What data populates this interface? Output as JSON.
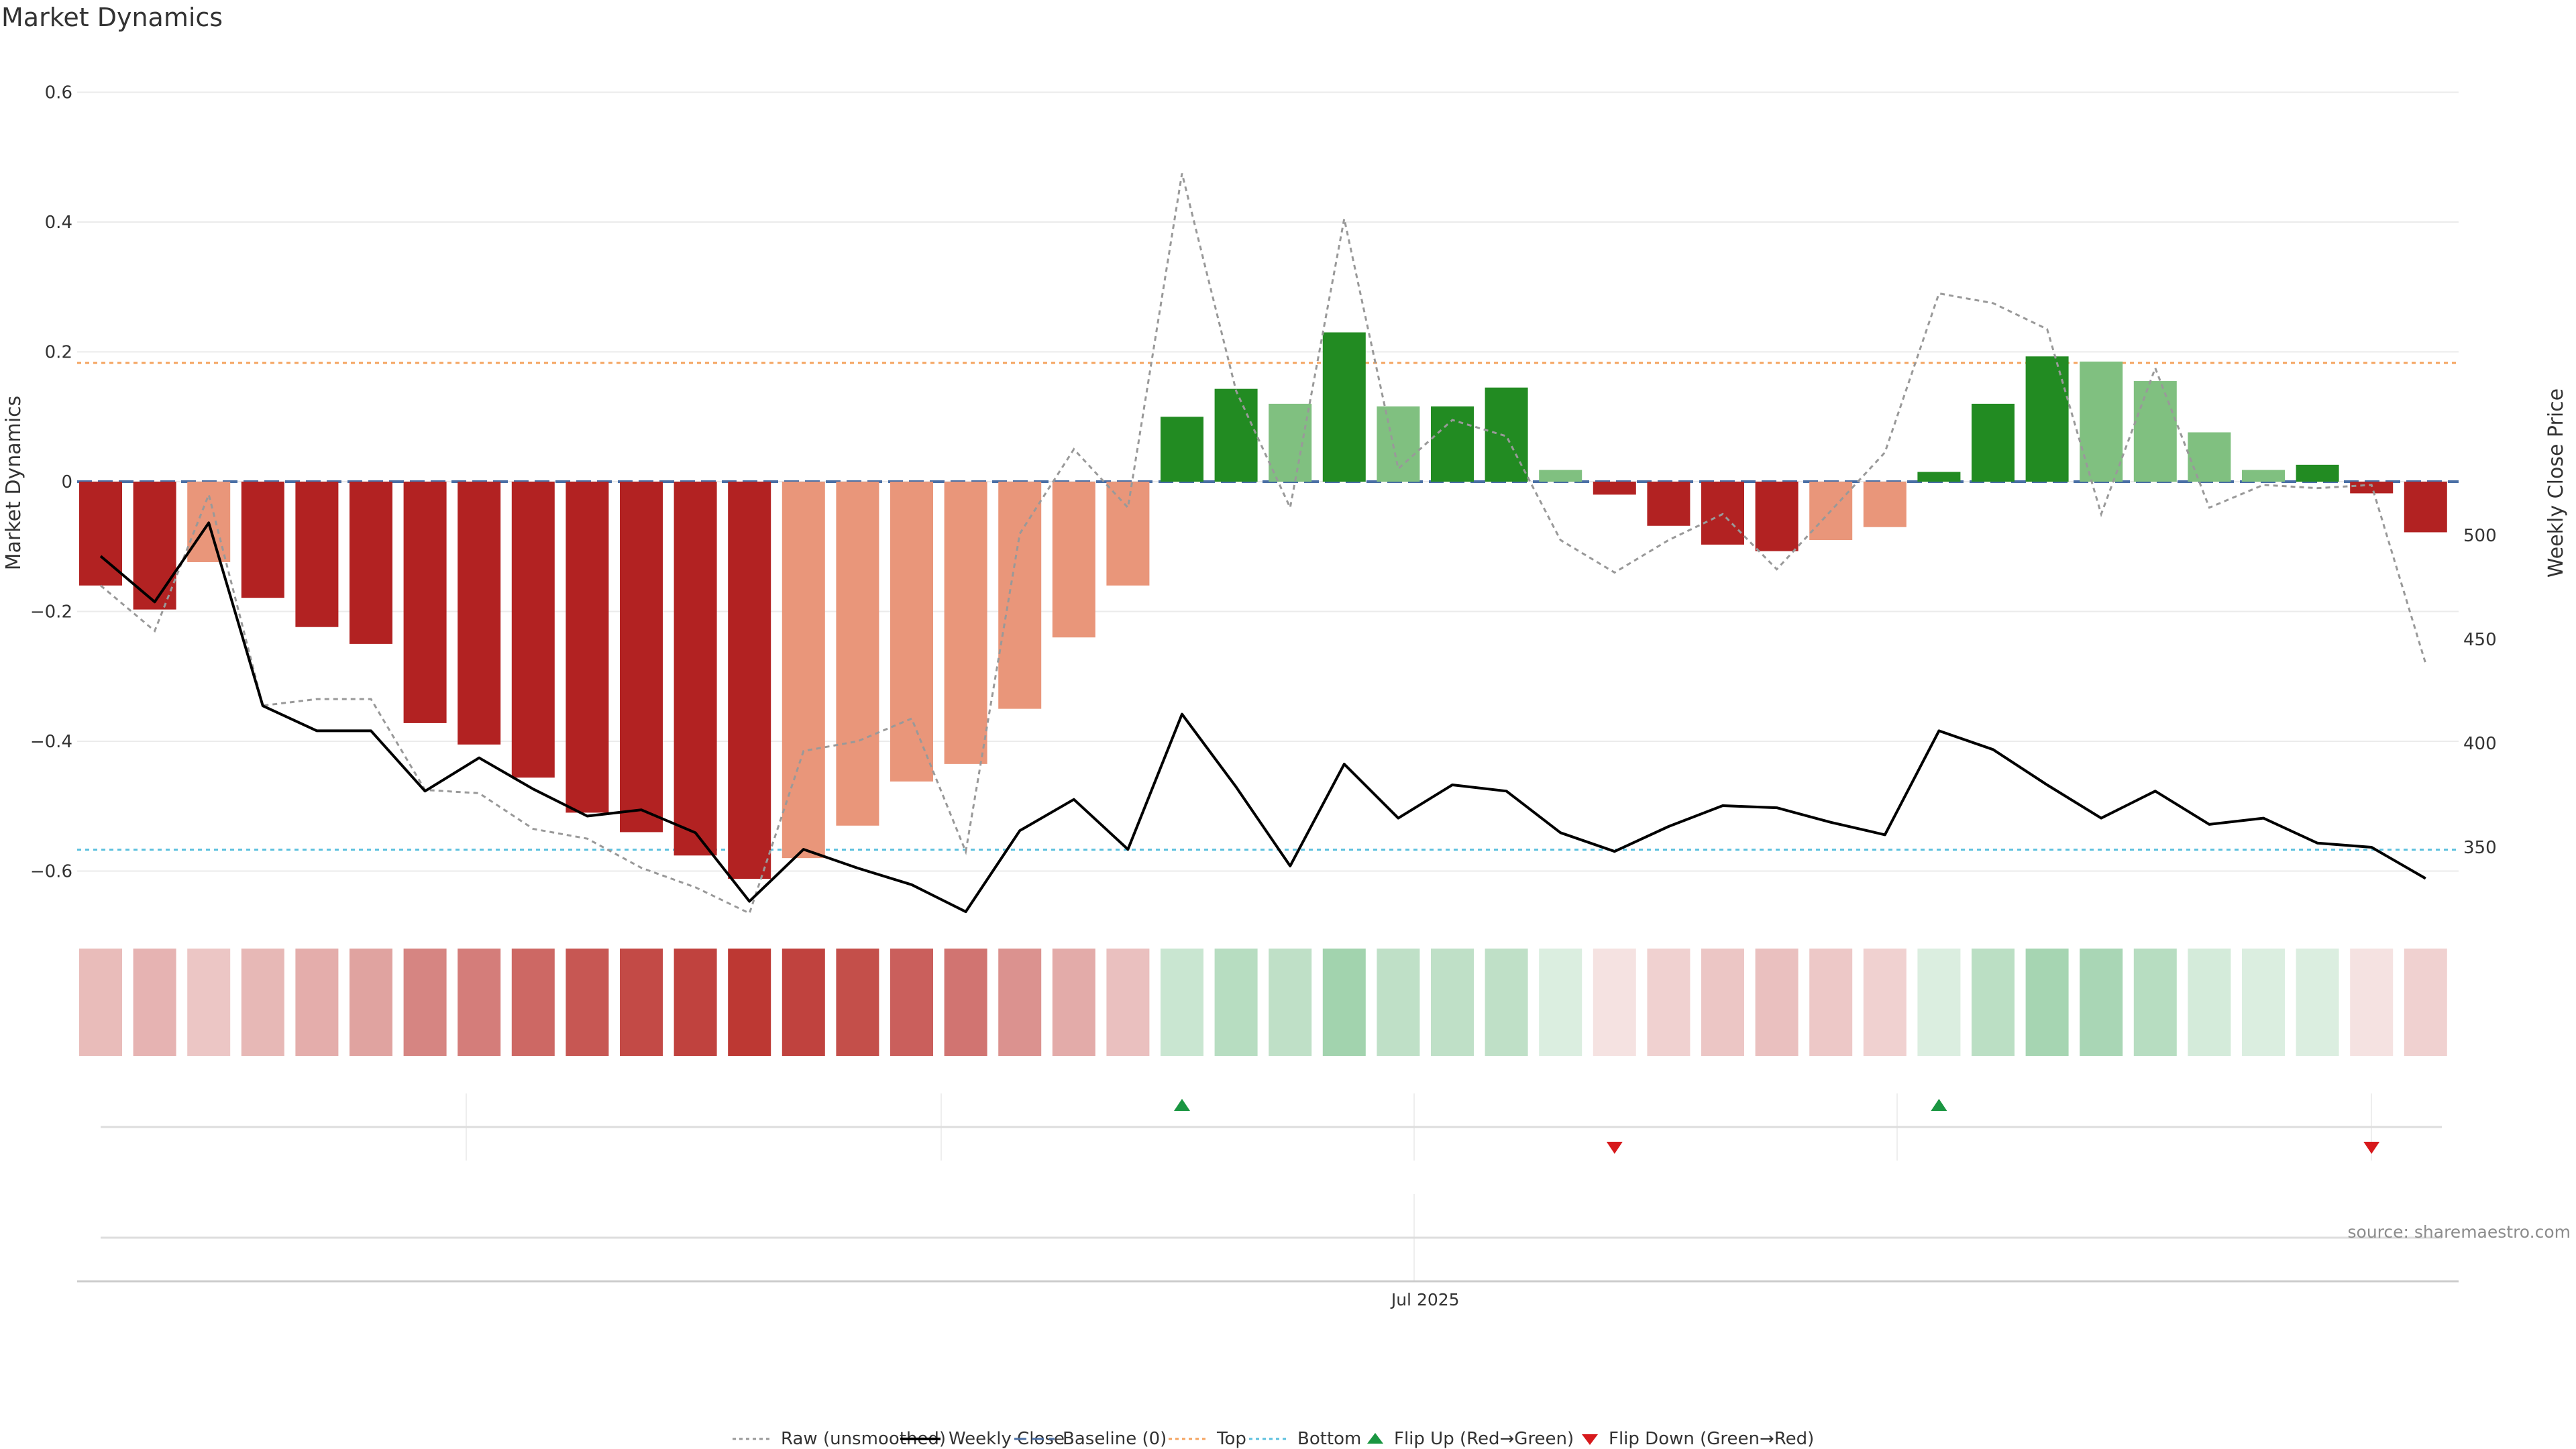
{
  "title": "Market Dynamics",
  "source": "source: sharemaestro.com",
  "chart_data": {
    "type": "bar",
    "left_axis": {
      "label": "Market Dynamics",
      "range": [
        -0.66,
        0.66
      ],
      "ticks": [
        0.6,
        0.4,
        0.2,
        0,
        -0.2,
        -0.4,
        -0.6
      ],
      "tick_labels": [
        "0.6",
        "0.4",
        "0.2",
        "0",
        "−0.2",
        "−0.4",
        "−0.6"
      ]
    },
    "right_axis": {
      "label": "Weekly Close Price",
      "ticks": [
        500,
        450,
        400,
        350
      ],
      "tick_labels": [
        "500",
        "450",
        "400",
        "350"
      ]
    },
    "x_axis": {
      "tick_label": "Jul 2025",
      "tick_index": 24.5
    },
    "grid": true,
    "legend_position": "bottom-center",
    "top_line": 0.183,
    "bottom_line": -0.567,
    "baseline": 0,
    "bars": {
      "values": [
        -0.16,
        -0.197,
        -0.124,
        -0.179,
        -0.224,
        -0.25,
        -0.372,
        -0.405,
        -0.456,
        -0.51,
        -0.54,
        -0.576,
        -0.612,
        -0.58,
        -0.53,
        -0.462,
        -0.435,
        -0.35,
        -0.24,
        -0.16,
        0.1,
        0.143,
        0.12,
        0.23,
        0.116,
        0.116,
        0.145,
        0.018,
        -0.02,
        -0.068,
        -0.097,
        -0.107,
        -0.09,
        -0.07,
        0.015,
        0.12,
        0.193,
        0.185,
        0.155,
        0.076,
        0.018,
        0.026,
        -0.018,
        -0.078
      ],
      "colors": [
        "#b22222",
        "#b22222",
        "#e9967a",
        "#b22222",
        "#b22222",
        "#b22222",
        "#b22222",
        "#b22222",
        "#b22222",
        "#b22222",
        "#b22222",
        "#b22222",
        "#b22222",
        "#e9967a",
        "#e9967a",
        "#e9967a",
        "#e9967a",
        "#e9967a",
        "#e9967a",
        "#e9967a",
        "#228b22",
        "#228b22",
        "#80c080",
        "#228b22",
        "#80c080",
        "#228b22",
        "#228b22",
        "#80c080",
        "#b22222",
        "#b22222",
        "#b22222",
        "#b22222",
        "#e9967a",
        "#e9967a",
        "#228b22",
        "#228b22",
        "#228b22",
        "#80c080",
        "#80c080",
        "#80c080",
        "#80c080",
        "#228b22",
        "#b22222",
        "#b22222"
      ]
    },
    "raw_unsmoothed": [
      -0.16,
      -0.23,
      -0.02,
      -0.345,
      -0.335,
      -0.335,
      -0.475,
      -0.48,
      -0.535,
      -0.55,
      -0.595,
      -0.625,
      -0.665,
      -0.415,
      -0.4,
      -0.365,
      -0.57,
      -0.08,
      0.05,
      -0.04,
      0.475,
      0.14,
      -0.04,
      0.405,
      0.02,
      0.095,
      0.07,
      -0.09,
      -0.14,
      -0.09,
      -0.05,
      -0.135,
      -0.045,
      0.045,
      0.29,
      0.275,
      0.235,
      -0.05,
      0.175,
      -0.04,
      -0.005,
      -0.01,
      -0.005,
      -0.28
    ],
    "weekly_close": [
      490,
      468,
      506,
      418,
      406,
      406,
      377,
      393,
      378,
      365,
      368,
      357,
      324,
      349,
      340,
      332,
      319,
      358,
      373,
      349,
      414,
      379,
      341,
      390,
      364,
      380,
      377,
      357,
      348,
      360,
      370,
      369,
      362,
      356,
      406,
      397,
      380,
      364,
      377,
      361,
      364,
      352,
      350,
      335
    ],
    "regime_strip": {
      "hues": [
        "red",
        "red",
        "red",
        "red",
        "red",
        "red",
        "red",
        "red",
        "red",
        "red",
        "red",
        "red",
        "red",
        "red",
        "red",
        "red",
        "red",
        "red",
        "red",
        "red",
        "green",
        "green",
        "green",
        "green",
        "green",
        "green",
        "green",
        "green",
        "red",
        "red",
        "red",
        "red",
        "red",
        "red",
        "green",
        "green",
        "green",
        "green",
        "green",
        "green",
        "green",
        "green",
        "red",
        "red"
      ],
      "intensity": [
        0.32,
        0.36,
        0.27,
        0.34,
        0.39,
        0.44,
        0.58,
        0.62,
        0.72,
        0.8,
        0.86,
        0.9,
        0.95,
        0.9,
        0.84,
        0.76,
        0.66,
        0.52,
        0.4,
        0.3,
        0.3,
        0.4,
        0.36,
        0.52,
        0.36,
        0.36,
        0.36,
        0.2,
        0.14,
        0.22,
        0.27,
        0.3,
        0.26,
        0.22,
        0.2,
        0.38,
        0.5,
        0.48,
        0.4,
        0.24,
        0.2,
        0.2,
        0.14,
        0.22
      ]
    },
    "flip_up_indices": [
      20,
      34
    ],
    "flip_down_indices": [
      28,
      42
    ],
    "legend": [
      {
        "label": "Raw (unsmoothed)",
        "style": "dotted",
        "color": "#999999"
      },
      {
        "label": "Weekly Close",
        "style": "solid",
        "color": "#000000"
      },
      {
        "label": "Baseline (0)",
        "style": "dashed",
        "color": "#4a6fa5"
      },
      {
        "label": "Top",
        "style": "dotted",
        "color": "#f4a460"
      },
      {
        "label": "Bottom",
        "style": "dotted",
        "color": "#5bc0de"
      },
      {
        "label": "Flip Up (Red→Green)",
        "style": "triangle-up",
        "color": "#1a9641"
      },
      {
        "label": "Flip Down (Green→Red)",
        "style": "triangle-down",
        "color": "#d7191c"
      }
    ]
  }
}
